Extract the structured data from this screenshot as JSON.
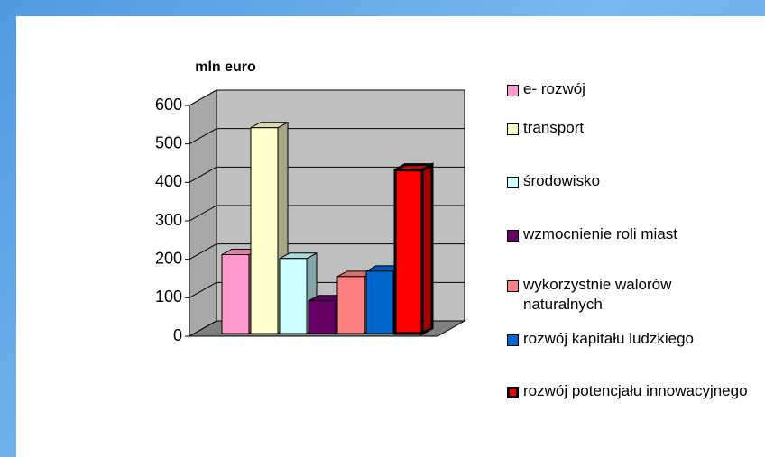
{
  "chart_data": {
    "type": "bar",
    "title": "mln euro",
    "series": [
      {
        "name": "e- rozwój",
        "color": "#ff99cc",
        "values": [
          205
        ]
      },
      {
        "name": "transport",
        "color": "#ffffcc",
        "values": [
          535
        ]
      },
      {
        "name": "środowisko",
        "color": "#ccffff",
        "values": [
          195
        ]
      },
      {
        "name": "wzmocnienie roli miast",
        "color": "#660066",
        "values": [
          85
        ]
      },
      {
        "name": "wykorzystnie walorów naturalnych",
        "color": "#ff8080",
        "values": [
          148
        ]
      },
      {
        "name": "rozwój kapitału ludzkiego",
        "color": "#0066cc",
        "values": [
          162
        ]
      },
      {
        "name": "rozwój potencjału innowacyjnego",
        "color": "#ff0000",
        "values": [
          425
        ]
      }
    ],
    "ylim": [
      0,
      600
    ],
    "yticks": [
      0,
      100,
      200,
      300,
      400,
      500,
      600
    ],
    "grid": true,
    "legend": "right"
  }
}
